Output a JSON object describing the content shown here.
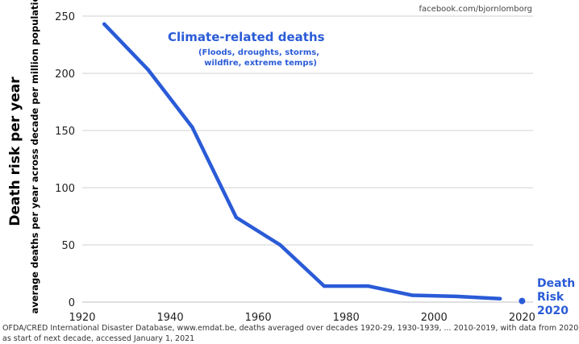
{
  "chart_data": {
    "type": "line",
    "title": "",
    "xlabel": "",
    "ylabel": "Death risk per year",
    "ylabel_sub": "average deaths per year across decade per million population",
    "xlim": [
      1920,
      2025
    ],
    "ylim": [
      0,
      250
    ],
    "x_ticks": [
      1920,
      1940,
      1960,
      1980,
      2000,
      2020
    ],
    "y_ticks": [
      0,
      50,
      100,
      150,
      200,
      250
    ],
    "grid": "horizontal",
    "series": [
      {
        "name": "Climate-related deaths",
        "color": "#2a5bd7",
        "x": [
          1925,
          1935,
          1945,
          1955,
          1965,
          1975,
          1985,
          1995,
          2005,
          2015
        ],
        "y": [
          243,
          203,
          153,
          74,
          50,
          14,
          14,
          6,
          5,
          3
        ]
      }
    ],
    "highlight_point": {
      "label": [
        "Death",
        "Risk",
        "2020"
      ],
      "x": 2020,
      "y": 1,
      "color": "#2a5bd7"
    },
    "annotation": {
      "title": "Climate-related deaths",
      "subtitle": [
        "(Floods, droughts, storms,",
        "wildfire, extreme temps)"
      ]
    }
  },
  "credit": "facebook.com/bjornlomborg",
  "source": [
    "OFDA/CRED International Disaster Database, www.emdat.be, deaths averaged over decades 1920-29, 1930-1939, ... 2010-2019, with data from 2020,",
    "as start of next decade, accessed January 1, 2021"
  ]
}
